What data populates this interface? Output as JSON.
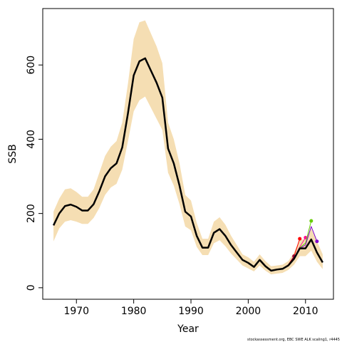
{
  "chart_data": {
    "type": "line",
    "xlabel": "Year",
    "ylabel": "SSB",
    "footnote": "stockassessment.org, EBC SWE ALK scaling1, r4445",
    "x": [
      1966,
      1967,
      1968,
      1969,
      1970,
      1971,
      1972,
      1973,
      1974,
      1975,
      1976,
      1977,
      1978,
      1979,
      1980,
      1981,
      1982,
      1983,
      1984,
      1985,
      1986,
      1987,
      1988,
      1989,
      1990,
      1991,
      1992,
      1993,
      1994,
      1995,
      1996,
      1997,
      1998,
      1999,
      2000,
      2001,
      2002,
      2003,
      2004,
      2005,
      2006,
      2007,
      2008,
      2009,
      2010,
      2011,
      2012,
      2013
    ],
    "band": {
      "color": "#f5deb3",
      "upper": [
        205,
        240,
        265,
        268,
        258,
        245,
        245,
        265,
        310,
        355,
        380,
        395,
        445,
        550,
        670,
        715,
        720,
        685,
        650,
        605,
        445,
        400,
        335,
        250,
        235,
        175,
        132,
        132,
        178,
        190,
        170,
        140,
        115,
        90,
        82,
        70,
        90,
        72,
        58,
        60,
        62,
        72,
        95,
        130,
        130,
        160,
        125,
        90
      ],
      "lower": [
        125,
        160,
        178,
        182,
        178,
        172,
        172,
        188,
        215,
        250,
        270,
        280,
        318,
        395,
        475,
        505,
        515,
        485,
        455,
        425,
        310,
        275,
        225,
        165,
        155,
        110,
        88,
        88,
        120,
        128,
        112,
        92,
        76,
        60,
        52,
        44,
        60,
        46,
        36,
        38,
        40,
        48,
        62,
        85,
        85,
        100,
        70,
        50
      ]
    },
    "series": [
      {
        "color": "#ff0000",
        "linewidth": 1,
        "end_point": true,
        "values": [
          168,
          200,
          220,
          224,
          218,
          208,
          208,
          225,
          260,
          300,
          322,
          335,
          378,
          470,
          572,
          610,
          618,
          585,
          552,
          512,
          375,
          335,
          275,
          205,
          192,
          140,
          108,
          108,
          148,
          158,
          140,
          115,
          95,
          75,
          67,
          56,
          75,
          58,
          46,
          49,
          51,
          62,
          85,
          132,
          null,
          null,
          null,
          null
        ]
      },
      {
        "color": "#990033",
        "linewidth": 1,
        "end_point": true,
        "values": [
          null,
          null,
          null,
          null,
          null,
          null,
          null,
          null,
          null,
          null,
          null,
          null,
          null,
          null,
          null,
          null,
          null,
          null,
          null,
          null,
          null,
          null,
          null,
          null,
          null,
          null,
          null,
          null,
          null,
          null,
          null,
          null,
          null,
          null,
          null,
          null,
          null,
          null,
          null,
          49,
          51,
          60,
          85,
          null,
          null,
          null,
          null,
          null
        ]
      },
      {
        "color": "#ff1493",
        "linewidth": 1,
        "end_point": true,
        "values": [
          null,
          null,
          null,
          null,
          null,
          null,
          null,
          null,
          null,
          null,
          null,
          null,
          null,
          null,
          null,
          null,
          null,
          null,
          null,
          null,
          null,
          null,
          null,
          null,
          null,
          null,
          null,
          null,
          null,
          null,
          null,
          null,
          null,
          null,
          null,
          null,
          null,
          null,
          null,
          null,
          null,
          60,
          80,
          110,
          135,
          null,
          null,
          null
        ]
      },
      {
        "color": "#66cc00",
        "linewidth": 1,
        "end_point": true,
        "values": [
          null,
          null,
          null,
          null,
          null,
          null,
          null,
          null,
          null,
          null,
          null,
          null,
          null,
          null,
          null,
          null,
          null,
          null,
          null,
          null,
          null,
          null,
          null,
          null,
          null,
          null,
          null,
          null,
          null,
          null,
          null,
          null,
          null,
          null,
          null,
          null,
          null,
          null,
          null,
          null,
          null,
          null,
          80,
          108,
          120,
          180,
          null,
          null
        ]
      },
      {
        "color": "#8000cc",
        "linewidth": 1,
        "end_point": true,
        "values": [
          null,
          null,
          null,
          null,
          null,
          null,
          null,
          null,
          null,
          null,
          null,
          null,
          null,
          null,
          null,
          null,
          null,
          null,
          null,
          null,
          null,
          null,
          null,
          null,
          null,
          null,
          null,
          null,
          null,
          null,
          null,
          null,
          null,
          null,
          null,
          null,
          null,
          null,
          null,
          null,
          null,
          null,
          null,
          106,
          115,
          165,
          125,
          null
        ]
      },
      {
        "color": "#000000",
        "linewidth": 2.5,
        "end_point": false,
        "values": [
          168,
          200,
          220,
          224,
          218,
          208,
          208,
          225,
          260,
          300,
          322,
          335,
          378,
          470,
          572,
          610,
          618,
          585,
          552,
          512,
          375,
          335,
          275,
          205,
          192,
          140,
          108,
          108,
          148,
          158,
          140,
          115,
          95,
          75,
          67,
          56,
          75,
          58,
          46,
          49,
          51,
          60,
          78,
          106,
          106,
          130,
          95,
          68
        ]
      }
    ],
    "xlim": [
      1964.12,
      2014.88
    ],
    "ylim": [
      -31,
      752
    ],
    "xticks": [
      1970,
      1980,
      1990,
      2000,
      2010
    ],
    "yticks": [
      0,
      200,
      400,
      600
    ]
  }
}
